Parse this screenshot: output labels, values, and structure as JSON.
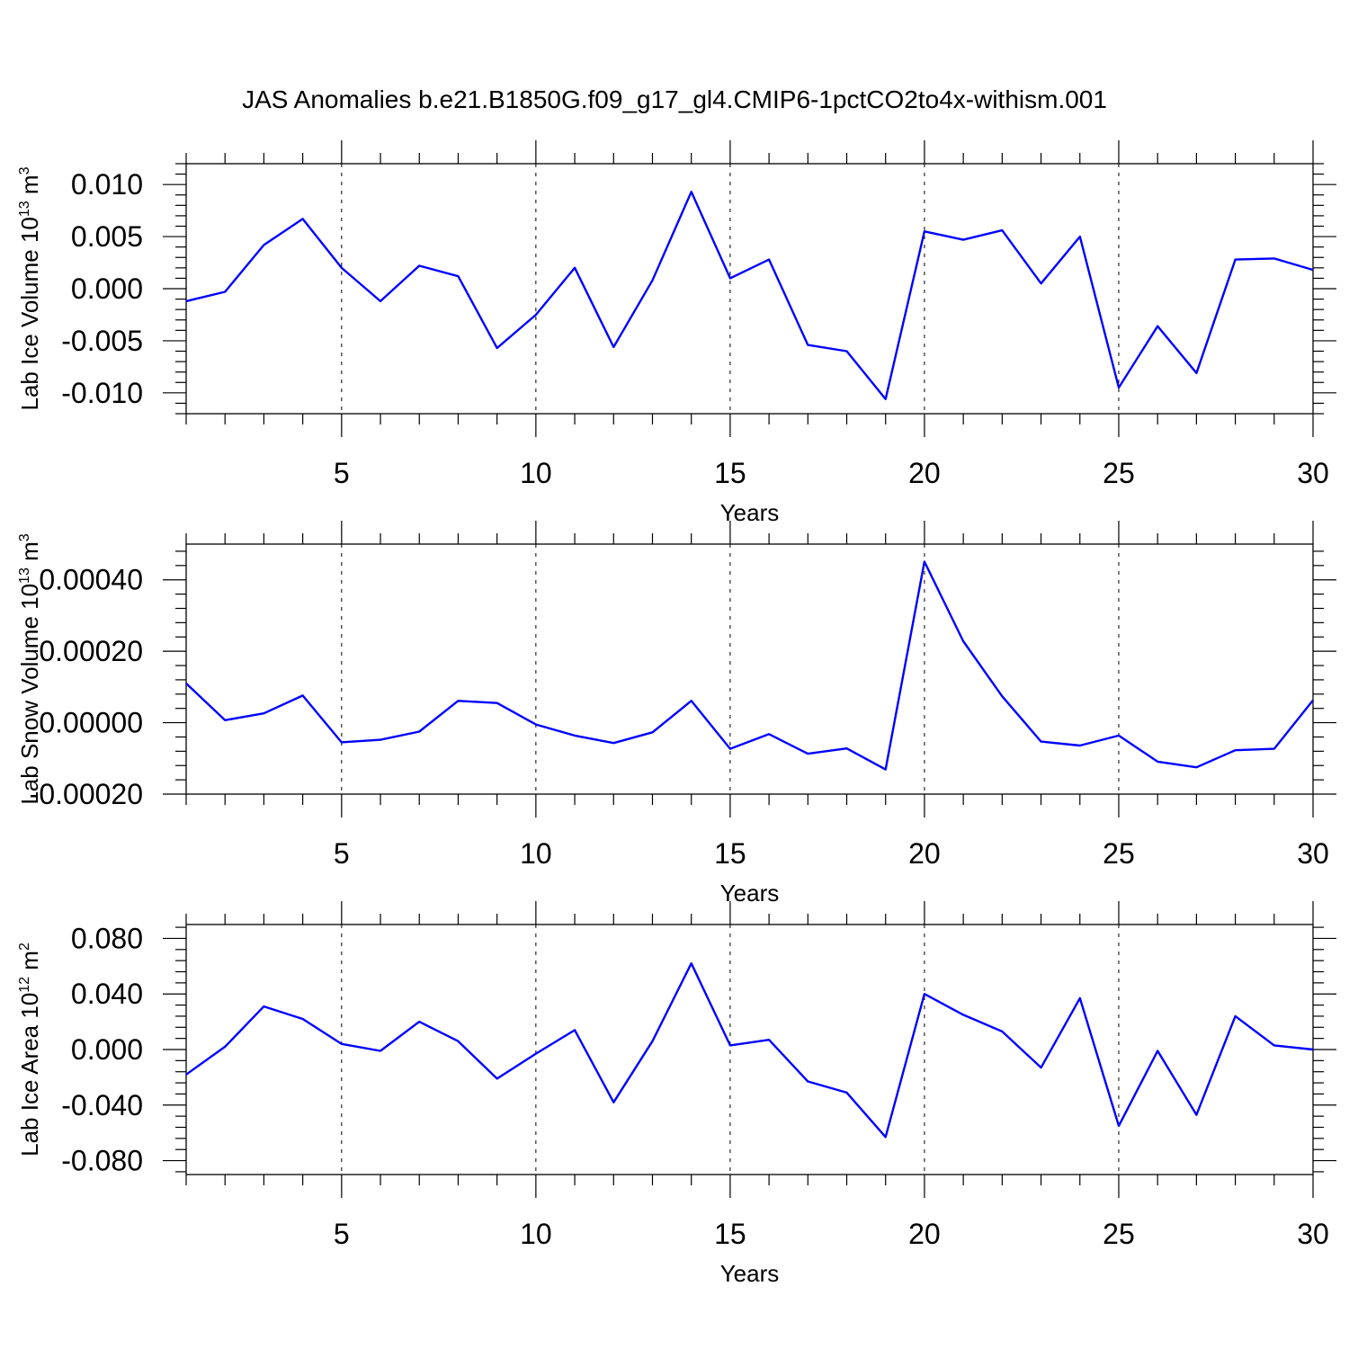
{
  "title": "JAS Anomalies b.e21.B1850G.f09_g17_gl4.CMIP6-1pctCO2to4x-withism.001",
  "colors": {
    "line": "#0000ff",
    "axes": "#000000",
    "background": "#ffffff"
  },
  "chart_data": [
    {
      "type": "line",
      "ylabel": "Lab Ice Volume 10",
      "ylabel_exp": "13",
      "ylabel_unit": " m",
      "ylabel_unit_exp": "3",
      "xlabel": "Years",
      "xlim": [
        1,
        30
      ],
      "ylim": [
        -0.012,
        0.012
      ],
      "xticks": [
        5,
        10,
        15,
        20,
        25,
        30
      ],
      "xtick_labels": [
        "5",
        "10",
        "15",
        "20",
        "25",
        "30"
      ],
      "yticks": [
        -0.01,
        -0.005,
        0,
        0.005,
        0.01
      ],
      "ytick_labels": [
        "-0.010",
        "-0.005",
        "0.000",
        "0.005",
        "0.010"
      ],
      "ygrid": false,
      "xgrid_dashed": true,
      "x": [
        1,
        2,
        3,
        4,
        5,
        6,
        7,
        8,
        9,
        10,
        11,
        12,
        13,
        14,
        15,
        16,
        17,
        18,
        19,
        20,
        21,
        22,
        23,
        24,
        25,
        26,
        27,
        28,
        29,
        30
      ],
      "y": [
        -0.0012,
        -0.0003,
        0.0042,
        0.0067,
        0.002,
        -0.0012,
        0.0022,
        0.0012,
        -0.0057,
        -0.0025,
        0.002,
        -0.0056,
        0.0008,
        0.0093,
        0.001,
        0.0028,
        -0.0054,
        -0.006,
        -0.0106,
        0.0055,
        0.0047,
        0.0056,
        0.0005,
        0.005,
        -0.0095,
        -0.0036,
        -0.0081,
        0.0028,
        0.0029,
        0.0018
      ]
    },
    {
      "type": "line",
      "ylabel": "Lab Snow Volume 10",
      "ylabel_exp": "13",
      "ylabel_unit": " m",
      "ylabel_unit_exp": "3",
      "xlabel": "Years",
      "xlim": [
        1,
        30
      ],
      "ylim": [
        -0.0002,
        0.0005
      ],
      "xticks": [
        5,
        10,
        15,
        20,
        25,
        30
      ],
      "xtick_labels": [
        "5",
        "10",
        "15",
        "20",
        "25",
        "30"
      ],
      "yticks": [
        -0.0002,
        0,
        0.0002,
        0.0004
      ],
      "ytick_labels": [
        "-0.00020",
        "0.00000",
        "0.00020",
        "0.00040"
      ],
      "xgrid_dashed": true,
      "x": [
        1,
        2,
        3,
        4,
        5,
        6,
        7,
        8,
        9,
        10,
        11,
        12,
        13,
        14,
        15,
        16,
        17,
        18,
        19,
        20,
        21,
        22,
        23,
        24,
        25,
        26,
        27,
        28,
        29,
        30
      ],
      "y": [
        0.00011,
        7e-06,
        2.6e-05,
        7.6e-05,
        -5.5e-05,
        -4.8e-05,
        -2.5e-05,
        6.1e-05,
        5.5e-05,
        -5e-06,
        -3.6e-05,
        -5.7e-05,
        -2.7e-05,
        6.1e-05,
        -7.3e-05,
        -3.2e-05,
        -8.7e-05,
        -7.2e-05,
        -0.000131,
        0.000451,
        0.000228,
        7.4e-05,
        -5.3e-05,
        -6.4e-05,
        -3.6e-05,
        -0.000109,
        -0.000125,
        -7.7e-05,
        -7.3e-05,
        6.3e-05
      ]
    },
    {
      "type": "line",
      "ylabel": "Lab Ice Area 10",
      "ylabel_exp": "12",
      "ylabel_unit": " m",
      "ylabel_unit_exp": "2",
      "xlabel": "Years",
      "xlim": [
        1,
        30
      ],
      "ylim": [
        -0.09,
        0.09
      ],
      "xticks": [
        5,
        10,
        15,
        20,
        25,
        30
      ],
      "xtick_labels": [
        "5",
        "10",
        "15",
        "20",
        "25",
        "30"
      ],
      "yticks": [
        -0.08,
        -0.04,
        0,
        0.04,
        0.08
      ],
      "ytick_labels": [
        "-0.080",
        "-0.040",
        "0.000",
        "0.040",
        "0.080"
      ],
      "xgrid_dashed": true,
      "x": [
        1,
        2,
        3,
        4,
        5,
        6,
        7,
        8,
        9,
        10,
        11,
        12,
        13,
        14,
        15,
        16,
        17,
        18,
        19,
        20,
        21,
        22,
        23,
        24,
        25,
        26,
        27,
        28,
        29,
        30
      ],
      "y": [
        -0.018,
        0.002,
        0.031,
        0.022,
        0.004,
        -0.001,
        0.02,
        0.006,
        -0.021,
        -0.003,
        0.014,
        -0.038,
        0.006,
        0.062,
        0.003,
        0.007,
        -0.023,
        -0.031,
        -0.063,
        0.04,
        0.025,
        0.013,
        -0.013,
        0.037,
        -0.055,
        -0.001,
        -0.047,
        0.024,
        0.003,
        0.0
      ]
    }
  ]
}
